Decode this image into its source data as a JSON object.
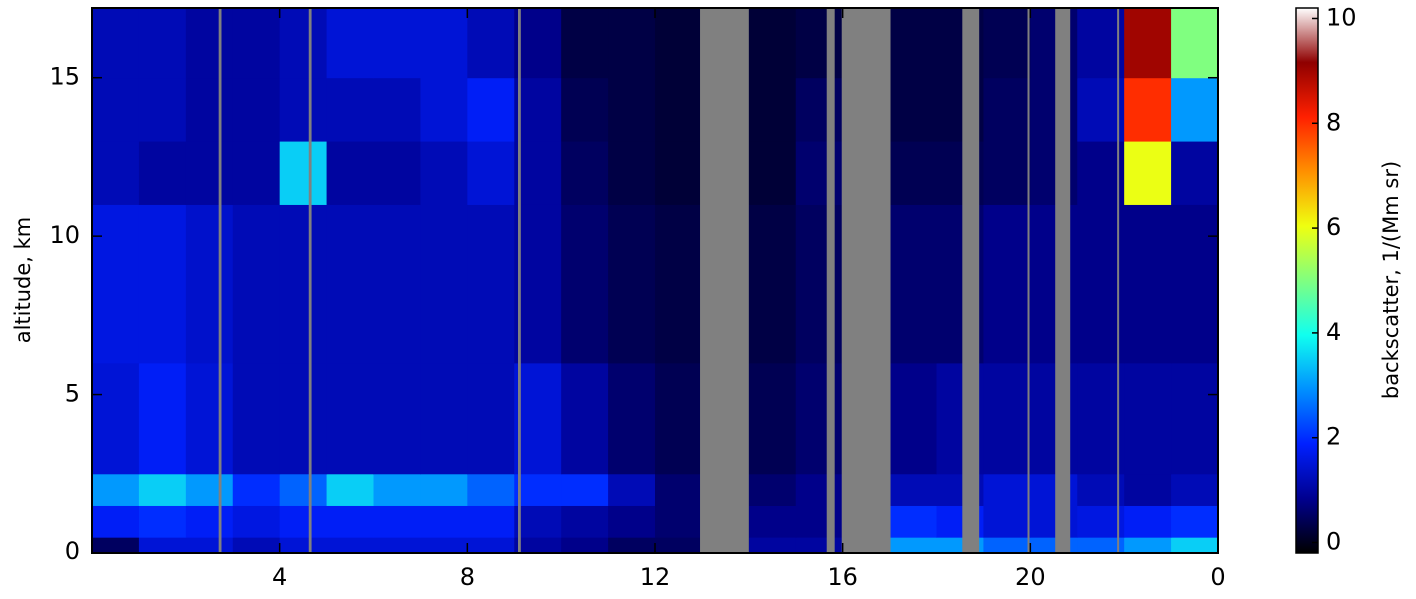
{
  "chart_data": {
    "type": "heatmap",
    "ylabel": "altitude, km",
    "colorbar_label": "backscatter, 1/(Mm sr)",
    "xlim": [
      0,
      24
    ],
    "ylim": [
      0,
      17.2
    ],
    "xticks": [
      4,
      8,
      12,
      16,
      20,
      {
        "value": 24,
        "label": "0"
      }
    ],
    "yticks": [
      0,
      5,
      10,
      15
    ],
    "clim": [
      -0.2,
      10.2
    ],
    "cticks": [
      0,
      2,
      4,
      6,
      8,
      10
    ],
    "colormap": [
      "#000000",
      "#00008f",
      "#0020ff",
      "#0090ff",
      "#10ffef",
      "#80ff80",
      "#efff10",
      "#ff9000",
      "#ff2000",
      "#8f0000",
      "#ffffff"
    ],
    "no_data_color": "#808080",
    "xbins": [
      0,
      1,
      2,
      3,
      4,
      5,
      6,
      7,
      8,
      9,
      10,
      11,
      12,
      13,
      14,
      15,
      16,
      17,
      18,
      19,
      20,
      21,
      22,
      23,
      24
    ],
    "ybins": [
      0,
      0.5,
      1.5,
      2.5,
      6,
      11,
      13,
      15,
      17.2
    ],
    "z": [
      [
        0.5,
        1.5,
        1.5,
        1.2,
        1.5,
        1.5,
        1.5,
        1.5,
        1.5,
        1.0,
        0.8,
        0.5,
        0.5,
        0.5,
        1.0,
        1.0,
        1.0,
        3.0,
        3.0,
        2.5,
        2.5,
        2.5,
        3.0,
        3.5
      ],
      [
        1.8,
        2.0,
        1.8,
        1.6,
        1.8,
        1.8,
        1.8,
        1.8,
        1.8,
        1.2,
        1.0,
        0.8,
        0.6,
        0.6,
        0.8,
        0.8,
        0.8,
        2.0,
        1.8,
        1.5,
        1.5,
        1.6,
        1.8,
        2.0
      ],
      [
        3.0,
        3.5,
        3.0,
        2.0,
        2.5,
        3.5,
        3.0,
        3.0,
        2.5,
        2.0,
        2.0,
        1.2,
        0.6,
        0.5,
        0.6,
        0.8,
        1.0,
        1.2,
        1.2,
        1.5,
        1.5,
        1.2,
        1.0,
        1.2
      ],
      [
        1.5,
        1.8,
        1.5,
        1.2,
        1.2,
        1.2,
        1.2,
        1.2,
        1.2,
        1.5,
        1.0,
        0.6,
        0.4,
        0.3,
        0.4,
        0.6,
        0.8,
        0.8,
        1.0,
        1.0,
        1.0,
        1.0,
        1.0,
        1.0
      ],
      [
        1.6,
        1.6,
        1.4,
        1.2,
        1.2,
        1.2,
        1.2,
        1.2,
        1.2,
        1.0,
        0.6,
        0.4,
        0.3,
        0.3,
        0.3,
        0.5,
        0.6,
        0.6,
        0.6,
        0.8,
        0.8,
        0.8,
        0.8,
        0.8
      ],
      [
        1.2,
        1.0,
        1.0,
        1.0,
        3.5,
        1.0,
        1.0,
        1.2,
        1.5,
        1.0,
        0.5,
        0.3,
        0.2,
        0.2,
        0.2,
        0.6,
        0.5,
        0.4,
        0.4,
        0.5,
        0.6,
        0.8,
        6.0,
        1.0
      ],
      [
        1.2,
        1.2,
        1.0,
        1.0,
        1.2,
        1.2,
        1.2,
        1.5,
        1.8,
        1.0,
        0.4,
        0.3,
        0.2,
        0.2,
        0.2,
        0.5,
        0.3,
        0.3,
        0.3,
        0.5,
        0.6,
        1.2,
        8.0,
        3.0
      ],
      [
        1.2,
        1.2,
        1.0,
        1.0,
        1.2,
        1.5,
        1.5,
        1.5,
        1.2,
        0.8,
        0.3,
        0.3,
        0.2,
        0.2,
        0.2,
        0.3,
        0.3,
        0.3,
        0.3,
        0.4,
        0.6,
        1.0,
        9.0,
        5.0
      ]
    ],
    "no_data": [
      [
        2.7,
        2.76
      ],
      [
        4.62,
        4.68
      ],
      [
        9.08,
        9.14
      ],
      [
        12.96,
        14.0
      ],
      [
        15.66,
        15.83
      ],
      [
        15.98,
        17.02
      ],
      [
        18.55,
        18.91
      ],
      [
        19.94,
        19.98
      ],
      [
        20.53,
        20.85
      ],
      [
        21.85,
        21.89
      ]
    ]
  }
}
